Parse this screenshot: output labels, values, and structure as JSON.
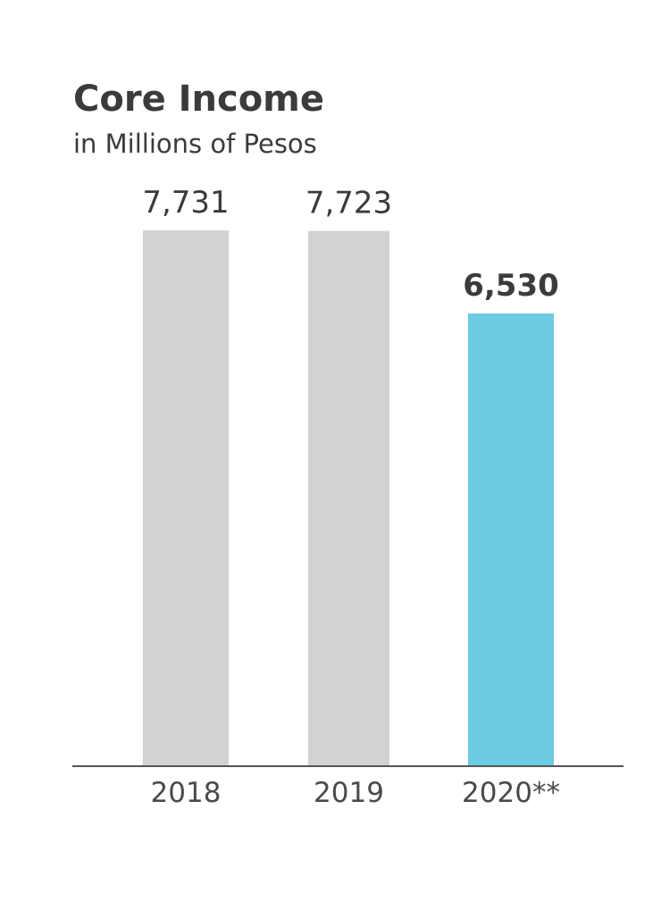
{
  "chart_data": {
    "type": "bar",
    "title": "Core Income",
    "subtitle": "in Millions of Pesos",
    "categories": [
      "2018",
      "2019",
      "2020**"
    ],
    "values": [
      7731,
      7723,
      6530
    ],
    "value_labels": [
      "7,731",
      "7,723",
      "6,530"
    ],
    "bar_colors": [
      "#d1d2d4",
      "#d1d2d4",
      "#6bcbe1"
    ],
    "label_colors": [
      "#3b3b3c",
      "#3b3b3c",
      "#3b3b3c"
    ],
    "label_bold": [
      false,
      false,
      true
    ],
    "ylim": [
      0,
      7731
    ],
    "grid": false,
    "axis_color": "#555555"
  }
}
